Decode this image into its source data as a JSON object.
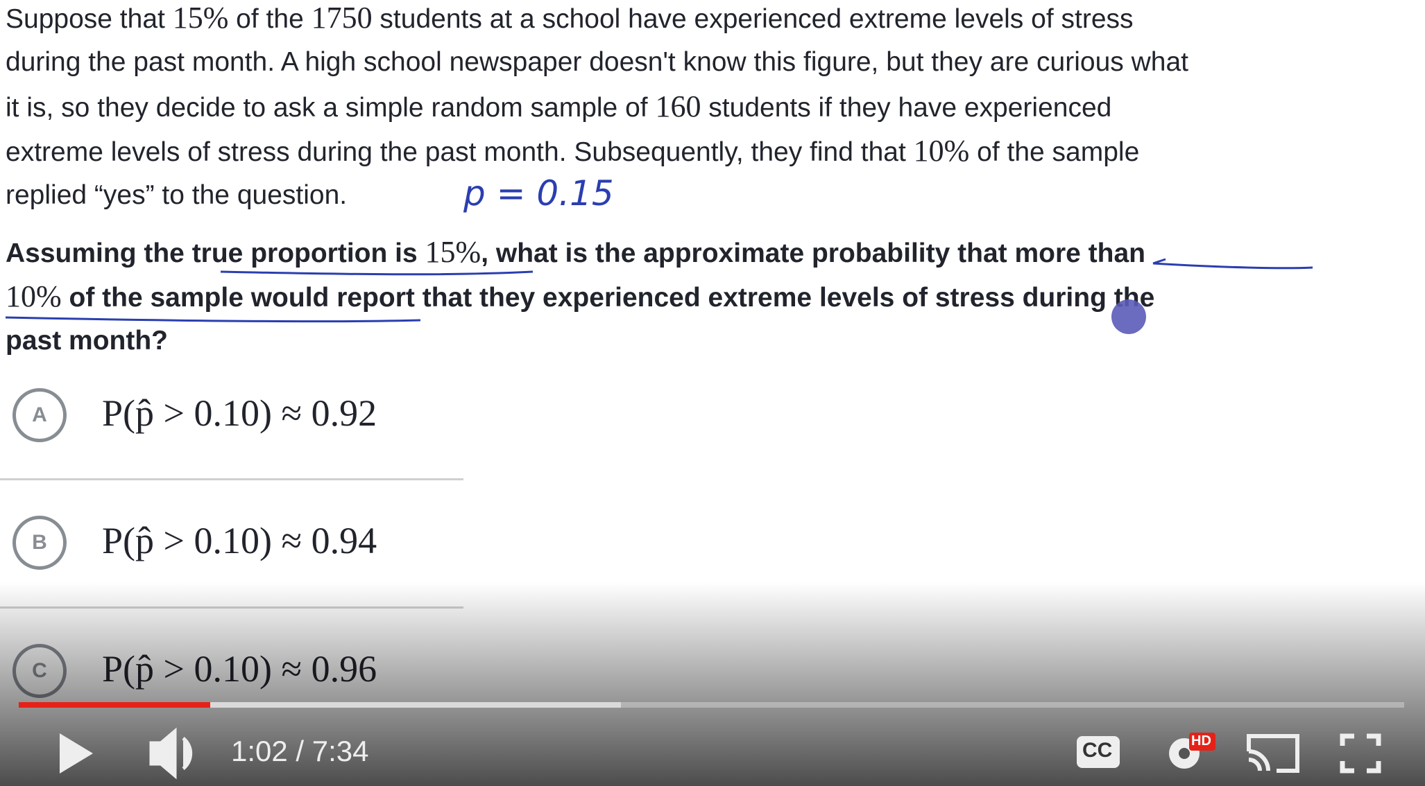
{
  "paragraph_lines": [
    [
      "Suppose that ",
      "15%",
      " of the ",
      "1750",
      " students at a school have experienced extreme levels of stress"
    ],
    [
      "during the past month. A high school newspaper doesn't know this figure, but they are curious what"
    ],
    [
      "it is, so they decide to ask a simple random sample of ",
      "160",
      " students if they have experienced"
    ],
    [
      "extreme levels of stress during the past month. Subsequently, they find that ",
      "10%",
      " of the sample"
    ],
    [
      "replied “yes” to the question."
    ]
  ],
  "annotation": "p = 0.15",
  "question_lines": [
    [
      "Assuming the true proportion is ",
      "15%",
      ", what is the approximate probability that more than"
    ],
    [
      "10%",
      " of the sample would report that they experienced extreme levels of stress during the"
    ],
    [
      "past month?"
    ]
  ],
  "choices": [
    {
      "letter": "A",
      "text": "P(p̂ > 0.10) ≈ 0.92"
    },
    {
      "letter": "B",
      "text": "P(p̂ > 0.10) ≈ 0.94"
    },
    {
      "letter": "C",
      "text": "P(p̂ > 0.10) ≈ 0.96"
    }
  ],
  "player": {
    "time": "1:02 / 7:34",
    "captions": "CC",
    "quality": "HD"
  }
}
